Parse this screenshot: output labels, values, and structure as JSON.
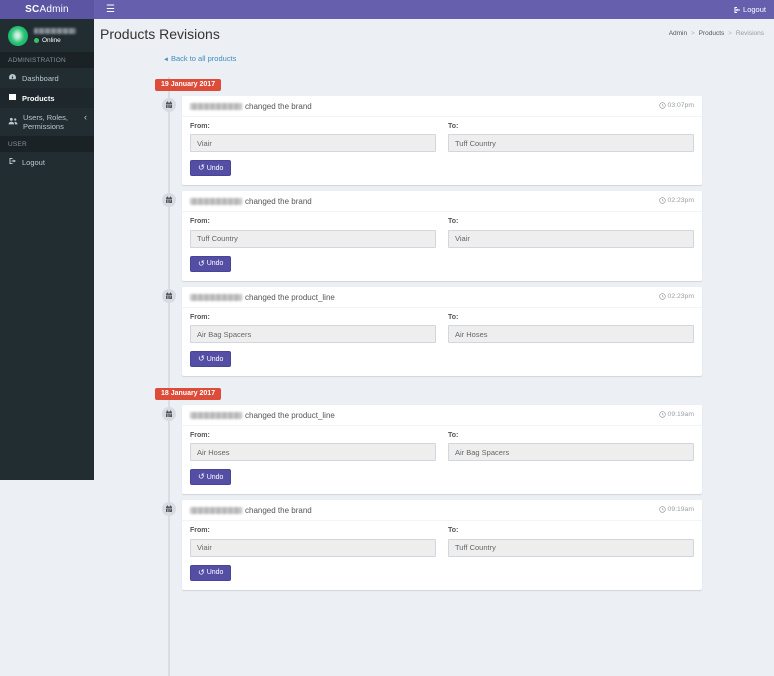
{
  "topbar": {
    "brand_bold": "SC",
    "brand_rest": "Admin",
    "logout_label": "Logout"
  },
  "sidebar": {
    "user": {
      "status": "Online"
    },
    "sections": [
      {
        "header": "ADMINISTRATION",
        "items": [
          {
            "id": "dashboard",
            "label": "Dashboard",
            "icon": "dashboard",
            "active": false,
            "chevron": false
          },
          {
            "id": "products",
            "label": "Products",
            "icon": "products",
            "active": true,
            "chevron": false
          },
          {
            "id": "users-roles-permissions",
            "label": "Users, Roles, Permissions",
            "icon": "users",
            "active": false,
            "chevron": true
          }
        ]
      },
      {
        "header": "USER",
        "items": [
          {
            "id": "logout",
            "label": "Logout",
            "icon": "logout",
            "active": false,
            "chevron": false
          }
        ]
      }
    ]
  },
  "page": {
    "title": "Products Revisions",
    "breadcrumb": [
      "Admin",
      "Products",
      "Revisions"
    ],
    "breadcrumb_separator": ">",
    "back_link": "Back to all products"
  },
  "labels": {
    "from": "From:",
    "to": "To:",
    "undo": "Undo"
  },
  "icons": {
    "hamburger": "☰",
    "undo": "↺",
    "back_caret": "◄",
    "chevron_left": "‹"
  },
  "timeline": {
    "groups": [
      {
        "date": "19 January 2017",
        "events": [
          {
            "action": "changed the brand",
            "time": "03:07pm",
            "from": "Viair",
            "to": "Tuff Country"
          },
          {
            "action": "changed the brand",
            "time": "02:23pm",
            "from": "Tuff Country",
            "to": "Viair"
          },
          {
            "action": "changed the product_line",
            "time": "02:23pm",
            "from": "Air Bag Spacers",
            "to": "Air Hoses"
          }
        ]
      },
      {
        "date": "18 January 2017",
        "events": [
          {
            "action": "changed the product_line",
            "time": "09:19am",
            "from": "Air Hoses",
            "to": "Air Bag Spacers"
          },
          {
            "action": "changed the brand",
            "time": "09:19am",
            "from": "Viair",
            "to": "Tuff Country"
          }
        ]
      }
    ]
  },
  "colors": {
    "topbar": "#655fae",
    "brand_bg": "#5b55a4",
    "sidebar": "#222d32",
    "background": "#ecf0f5",
    "danger_badge": "#dd4b39",
    "link": "#3c8dbc",
    "undo_button": "#554ea5",
    "avatar_green": "#1abc6c"
  }
}
